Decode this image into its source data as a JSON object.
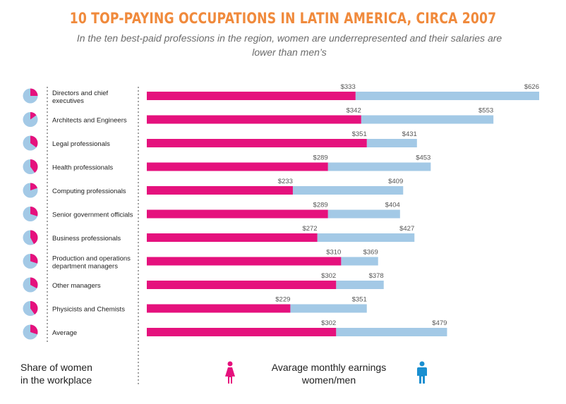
{
  "title": "10 TOP-PAYING OCCUPATIONS IN LATIN AMERICA, CIRCA 2007",
  "subtitle": "In the ten best-paid professions in the region, women are underrepresented and their salaries are lower than men’s",
  "footer": {
    "share_line1": "Share of women",
    "share_line2": "in the workplace",
    "earn_line1": "Avarage monthly earnings",
    "earn_line2": "women/men"
  },
  "colors": {
    "women": "#e5117d",
    "men": "#a3c9e6",
    "title": "#f08a3c"
  },
  "icons": {
    "women": "female-figure-icon",
    "men": "male-figure-icon"
  },
  "chart_data": {
    "type": "bar",
    "orientation": "horizontal",
    "categories": [
      "Directors and chief executives",
      "Architects and Engineers",
      "Legal professionals",
      "Health professionals",
      "Computing professionals",
      "Senior government officials",
      "Business professionals",
      "Production and operations department managers",
      "Other managers",
      "Physicists and Chemists",
      "Average"
    ],
    "series": [
      {
        "name": "women",
        "values": [
          333,
          342,
          351,
          289,
          233,
          289,
          272,
          310,
          302,
          229,
          302
        ]
      },
      {
        "name": "men",
        "values": [
          626,
          553,
          431,
          453,
          409,
          404,
          427,
          369,
          378,
          351,
          479
        ]
      }
    ],
    "labels": {
      "women": [
        "$333",
        "$342",
        "$351",
        "$289",
        "$233",
        "$289",
        "$272",
        "$310",
        "$302",
        "$229",
        "$302"
      ],
      "men": [
        "$626",
        "$553",
        "$431",
        "$453",
        "$409",
        "$404",
        "$427",
        "$369",
        "$378",
        "$351",
        "$479"
      ]
    },
    "share_of_women": [
      0.25,
      0.15,
      0.35,
      0.4,
      0.2,
      0.3,
      0.42,
      0.3,
      0.33,
      0.4,
      0.3
    ],
    "xlim": [
      0,
      626
    ],
    "grid": false,
    "legend": "bottom"
  }
}
